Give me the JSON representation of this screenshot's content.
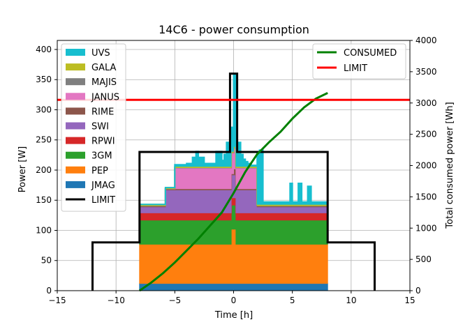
{
  "chart_data": {
    "type": "area",
    "title": "14C6 - power consumption",
    "xlabel": "Time [h]",
    "ylabel": "Power [W]",
    "y2label": "Total consumed power [Wh]",
    "xlim": [
      -15,
      15
    ],
    "ylim": [
      0,
      415
    ],
    "y2lim": [
      0,
      4000
    ],
    "xticks": [
      -15,
      -10,
      -5,
      0,
      5,
      10,
      15
    ],
    "yticks": [
      0,
      50,
      100,
      150,
      200,
      250,
      300,
      350,
      400
    ],
    "y2ticks": [
      0,
      500,
      1000,
      1500,
      2000,
      2500,
      3000,
      3500,
      4000
    ],
    "grid": true,
    "legend_left_position": "upper-left",
    "legend_right_position": "upper-right",
    "stack_x": [
      -8,
      -6,
      -5.8,
      -5,
      -4,
      -3.5,
      -3.2,
      -3,
      -2.5,
      -2,
      -1.5,
      -1,
      -0.8,
      -0.6,
      -0.4,
      -0.2,
      0,
      0.2,
      0.4,
      0.6,
      0.8,
      1,
      1.2,
      1.5,
      2,
      2.2,
      2.5,
      3,
      3.5,
      4,
      4.3,
      4.8,
      5,
      5.5,
      5.8,
      6,
      6.3,
      6.6,
      7,
      7.5,
      8
    ],
    "stack_series": [
      {
        "name": "JMAG",
        "color": "#1f77b4",
        "values": [
          12,
          12,
          12,
          12,
          12,
          12,
          12,
          12,
          12,
          12,
          12,
          12,
          12,
          12,
          12,
          12,
          12,
          12,
          12,
          12,
          12,
          12,
          12,
          12,
          12,
          12,
          12,
          12,
          12,
          12,
          12,
          12,
          12,
          12,
          12,
          12,
          12,
          12,
          12,
          12,
          12
        ]
      },
      {
        "name": "PEP",
        "color": "#ff7f0e",
        "values": [
          65,
          65,
          65,
          65,
          65,
          65,
          65,
          65,
          65,
          65,
          65,
          65,
          65,
          65,
          65,
          90,
          90,
          65,
          65,
          65,
          65,
          65,
          65,
          65,
          65,
          65,
          65,
          65,
          65,
          65,
          65,
          65,
          65,
          65,
          65,
          65,
          65,
          65,
          65,
          65,
          65
        ]
      },
      {
        "name": "3GM",
        "color": "#2ca02c",
        "values": [
          40,
          40,
          40,
          40,
          40,
          40,
          40,
          40,
          40,
          40,
          40,
          40,
          40,
          40,
          40,
          40,
          40,
          40,
          40,
          40,
          40,
          40,
          40,
          40,
          40,
          40,
          40,
          40,
          40,
          40,
          40,
          40,
          40,
          40,
          40,
          40,
          40,
          40,
          40,
          40,
          40
        ]
      },
      {
        "name": "RPWI",
        "color": "#d62728",
        "values": [
          12,
          12,
          12,
          12,
          12,
          12,
          12,
          12,
          12,
          12,
          12,
          12,
          12,
          12,
          12,
          12,
          12,
          12,
          12,
          12,
          12,
          12,
          12,
          12,
          12,
          12,
          12,
          12,
          12,
          12,
          12,
          12,
          12,
          12,
          12,
          12,
          12,
          12,
          12,
          12,
          12
        ]
      },
      {
        "name": "SWI",
        "color": "#9467bd",
        "values": [
          10,
          10,
          38,
          38,
          38,
          38,
          38,
          38,
          38,
          38,
          38,
          38,
          38,
          38,
          38,
          38,
          38,
          38,
          38,
          38,
          38,
          38,
          38,
          38,
          10,
          10,
          10,
          10,
          10,
          10,
          10,
          10,
          10,
          10,
          10,
          10,
          10,
          10,
          10,
          10,
          10
        ]
      },
      {
        "name": "RIME",
        "color": "#8c564b",
        "values": [
          2,
          2,
          2,
          2,
          2,
          2,
          2,
          2,
          2,
          2,
          2,
          2,
          2,
          2,
          2,
          2,
          10,
          2,
          2,
          2,
          2,
          2,
          2,
          2,
          2,
          2,
          2,
          2,
          2,
          2,
          2,
          2,
          2,
          2,
          2,
          2,
          2,
          2,
          2,
          2,
          2
        ]
      },
      {
        "name": "JANUS",
        "color": "#e377c2",
        "values": [
          0,
          0,
          0,
          35,
          35,
          35,
          35,
          35,
          35,
          35,
          35,
          35,
          35,
          35,
          35,
          35,
          35,
          35,
          35,
          35,
          35,
          35,
          35,
          35,
          0,
          0,
          0,
          0,
          0,
          0,
          0,
          0,
          0,
          0,
          0,
          0,
          0,
          0,
          0,
          0,
          0
        ]
      },
      {
        "name": "MAJIS",
        "color": "#7f7f7f",
        "values": [
          0,
          0,
          0,
          0,
          0,
          0,
          0,
          0,
          0,
          0,
          0,
          0,
          0,
          0,
          0,
          0,
          0,
          0,
          0,
          0,
          0,
          0,
          0,
          0,
          0,
          0,
          0,
          0,
          0,
          0,
          0,
          0,
          0,
          0,
          0,
          0,
          0,
          0,
          0,
          0,
          0
        ]
      },
      {
        "name": "GALA",
        "color": "#bcbd22",
        "values": [
          2,
          2,
          2,
          2,
          2,
          2,
          2,
          2,
          2,
          2,
          2,
          2,
          2,
          2,
          2,
          2,
          2,
          2,
          2,
          2,
          2,
          2,
          2,
          2,
          2,
          2,
          2,
          2,
          2,
          2,
          2,
          2,
          2,
          2,
          2,
          2,
          2,
          2,
          2,
          2,
          2
        ]
      },
      {
        "name": "UVS",
        "color": "#17becf",
        "values": [
          0,
          0,
          0,
          3,
          5,
          15,
          25,
          15,
          5,
          5,
          25,
          10,
          20,
          40,
          30,
          40,
          120,
          30,
          40,
          20,
          12,
          8,
          5,
          2,
          85,
          90,
          4,
          4,
          4,
          4,
          4,
          35,
          4,
          35,
          4,
          4,
          30,
          4,
          4,
          4,
          4
        ]
      }
    ],
    "limit_left": {
      "name": "LIMIT",
      "color": "#000000",
      "x": [
        -12,
        -12,
        -8,
        -8,
        -0.3,
        -0.3,
        0.3,
        0.3,
        8,
        8,
        12,
        12
      ],
      "values": [
        0,
        80,
        80,
        230,
        230,
        360,
        360,
        230,
        230,
        80,
        80,
        0
      ]
    },
    "consumed": {
      "name": "CONSUMED",
      "color": "#008000",
      "x": [
        -8,
        -7,
        -6,
        -5,
        -4,
        -3,
        -2,
        -1,
        0,
        1,
        2,
        3,
        4,
        5,
        6,
        7,
        8
      ],
      "values": [
        0,
        130,
        280,
        450,
        640,
        830,
        1040,
        1250,
        1560,
        1900,
        2180,
        2370,
        2540,
        2750,
        2930,
        3070,
        3160
      ]
    },
    "limit_right": {
      "name": "LIMIT",
      "color": "#ff0000",
      "value": 3050
    }
  }
}
